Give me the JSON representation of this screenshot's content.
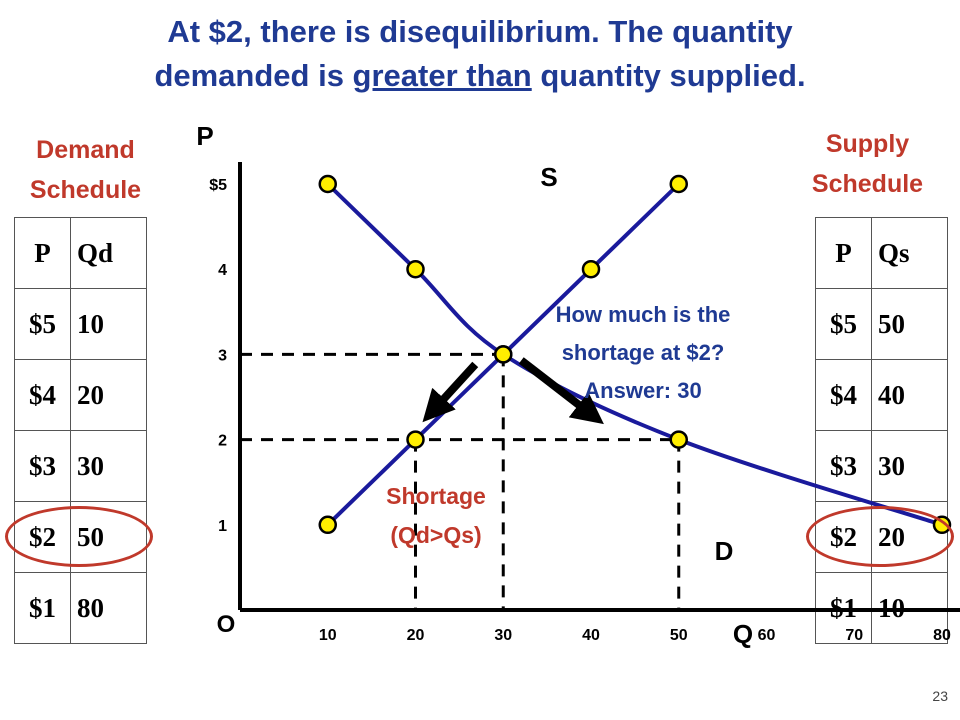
{
  "title": {
    "line1": "At $2, there is disequilibrium. The quantity",
    "line2_pre": "demanded is ",
    "line2_underlined": "greater than",
    "line2_post": " quantity supplied."
  },
  "demand_schedule": {
    "title_line1": "Demand",
    "title_line2": "Schedule",
    "headers": [
      "P",
      "Qd"
    ],
    "rows": [
      [
        "$5",
        "10"
      ],
      [
        "$4",
        "20"
      ],
      [
        "$3",
        "30"
      ],
      [
        "$2",
        "50"
      ],
      [
        "$1",
        "80"
      ]
    ],
    "highlight_row": 3
  },
  "supply_schedule": {
    "title_line1": "Supply",
    "title_line2": "Schedule",
    "headers": [
      "P",
      "Qs"
    ],
    "rows": [
      [
        "$5",
        "50"
      ],
      [
        "$4",
        "40"
      ],
      [
        "$3",
        "30"
      ],
      [
        "$2",
        "20"
      ],
      [
        "$1",
        "10"
      ]
    ],
    "highlight_row": 3
  },
  "colors": {
    "title": "#1f3a93",
    "schedule_title": "#c0392b",
    "curve": "#1a1a9c",
    "point_fill": "#ffee00",
    "annotation": "#1f3a93",
    "shortage": "#c0392b",
    "highlight": "#c0392b"
  },
  "chart_data": {
    "type": "line",
    "ylabel": "P",
    "xlabel": "Q",
    "origin_label": "O",
    "x_ticks": [
      "10",
      "20",
      "30",
      "40",
      "50",
      "60",
      "70",
      "80"
    ],
    "y_ticks": [
      "$5",
      "4",
      "3",
      "2",
      "1"
    ],
    "xlim": [
      0,
      85
    ],
    "ylim": [
      0,
      5.2
    ],
    "series": [
      {
        "name": "S",
        "x": [
          10,
          20,
          30,
          40,
          50
        ],
        "y": [
          1,
          2,
          3,
          4,
          5
        ]
      },
      {
        "name": "D",
        "x": [
          10,
          20,
          30,
          50,
          80
        ],
        "y": [
          5,
          4,
          3,
          2,
          1
        ]
      }
    ],
    "equilibrium": {
      "x": 30,
      "y": 3
    },
    "shortage_price": 2,
    "annotations": {
      "question_line1": "How much is the",
      "question_line2": "shortage at $2?",
      "answer": "Answer: 30",
      "shortage_line1": "Shortage",
      "shortage_line2": "(Qd>Qs)"
    }
  },
  "page_number": "23"
}
